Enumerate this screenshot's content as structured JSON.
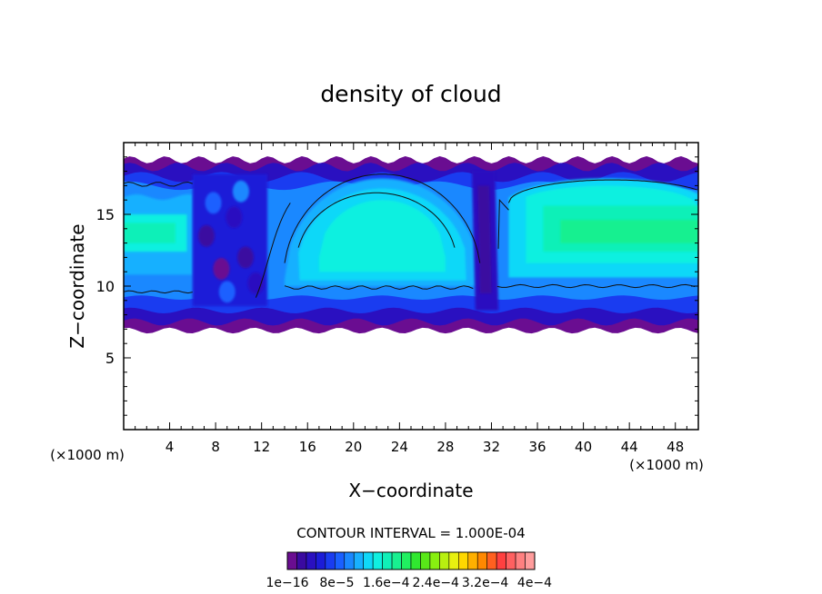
{
  "chart_data": {
    "type": "heatmap",
    "title": "density of cloud",
    "xlabel": "X−coordinate",
    "ylabel": "Z−coordinate",
    "x_unit_left": "(×1000 m)",
    "x_unit_right": "(×1000 m)",
    "xlim": [
      0,
      50
    ],
    "ylim": [
      0,
      20
    ],
    "x_ticks": [
      4,
      8,
      12,
      16,
      20,
      24,
      28,
      32,
      36,
      40,
      44,
      48
    ],
    "y_ticks": [
      5,
      10,
      15
    ],
    "contour_interval_text": "CONTOUR INTERVAL = 1.000E-04",
    "colorbar": {
      "colors": [
        "#6a0d91",
        "#3a0aa0",
        "#2a10c0",
        "#1c1cd8",
        "#1a3cf0",
        "#1a60ff",
        "#1a88ff",
        "#18b0ff",
        "#10d8f8",
        "#10f0e0",
        "#10f0b8",
        "#18f090",
        "#20f060",
        "#30e830",
        "#58e818",
        "#88f010",
        "#b8f010",
        "#e8f010",
        "#ffd800",
        "#ffb000",
        "#ff8800",
        "#ff6020",
        "#ff4040",
        "#ff6060",
        "#ff8080",
        "#ff9c9c"
      ],
      "labels": [
        "1e−16",
        "8e−5",
        "1.6e−4",
        "2.4e−4",
        "3.2e−4",
        "4e−4"
      ]
    },
    "cloud_layer": {
      "base_z_approx": 7,
      "top_z_approx": 19,
      "core_z_approx": 14,
      "dry_slots_x_approx": [
        [
          6,
          12
        ],
        [
          30,
          33
        ]
      ],
      "peak_density_approx": "1.6e-4"
    },
    "legend": "bottom-center"
  }
}
